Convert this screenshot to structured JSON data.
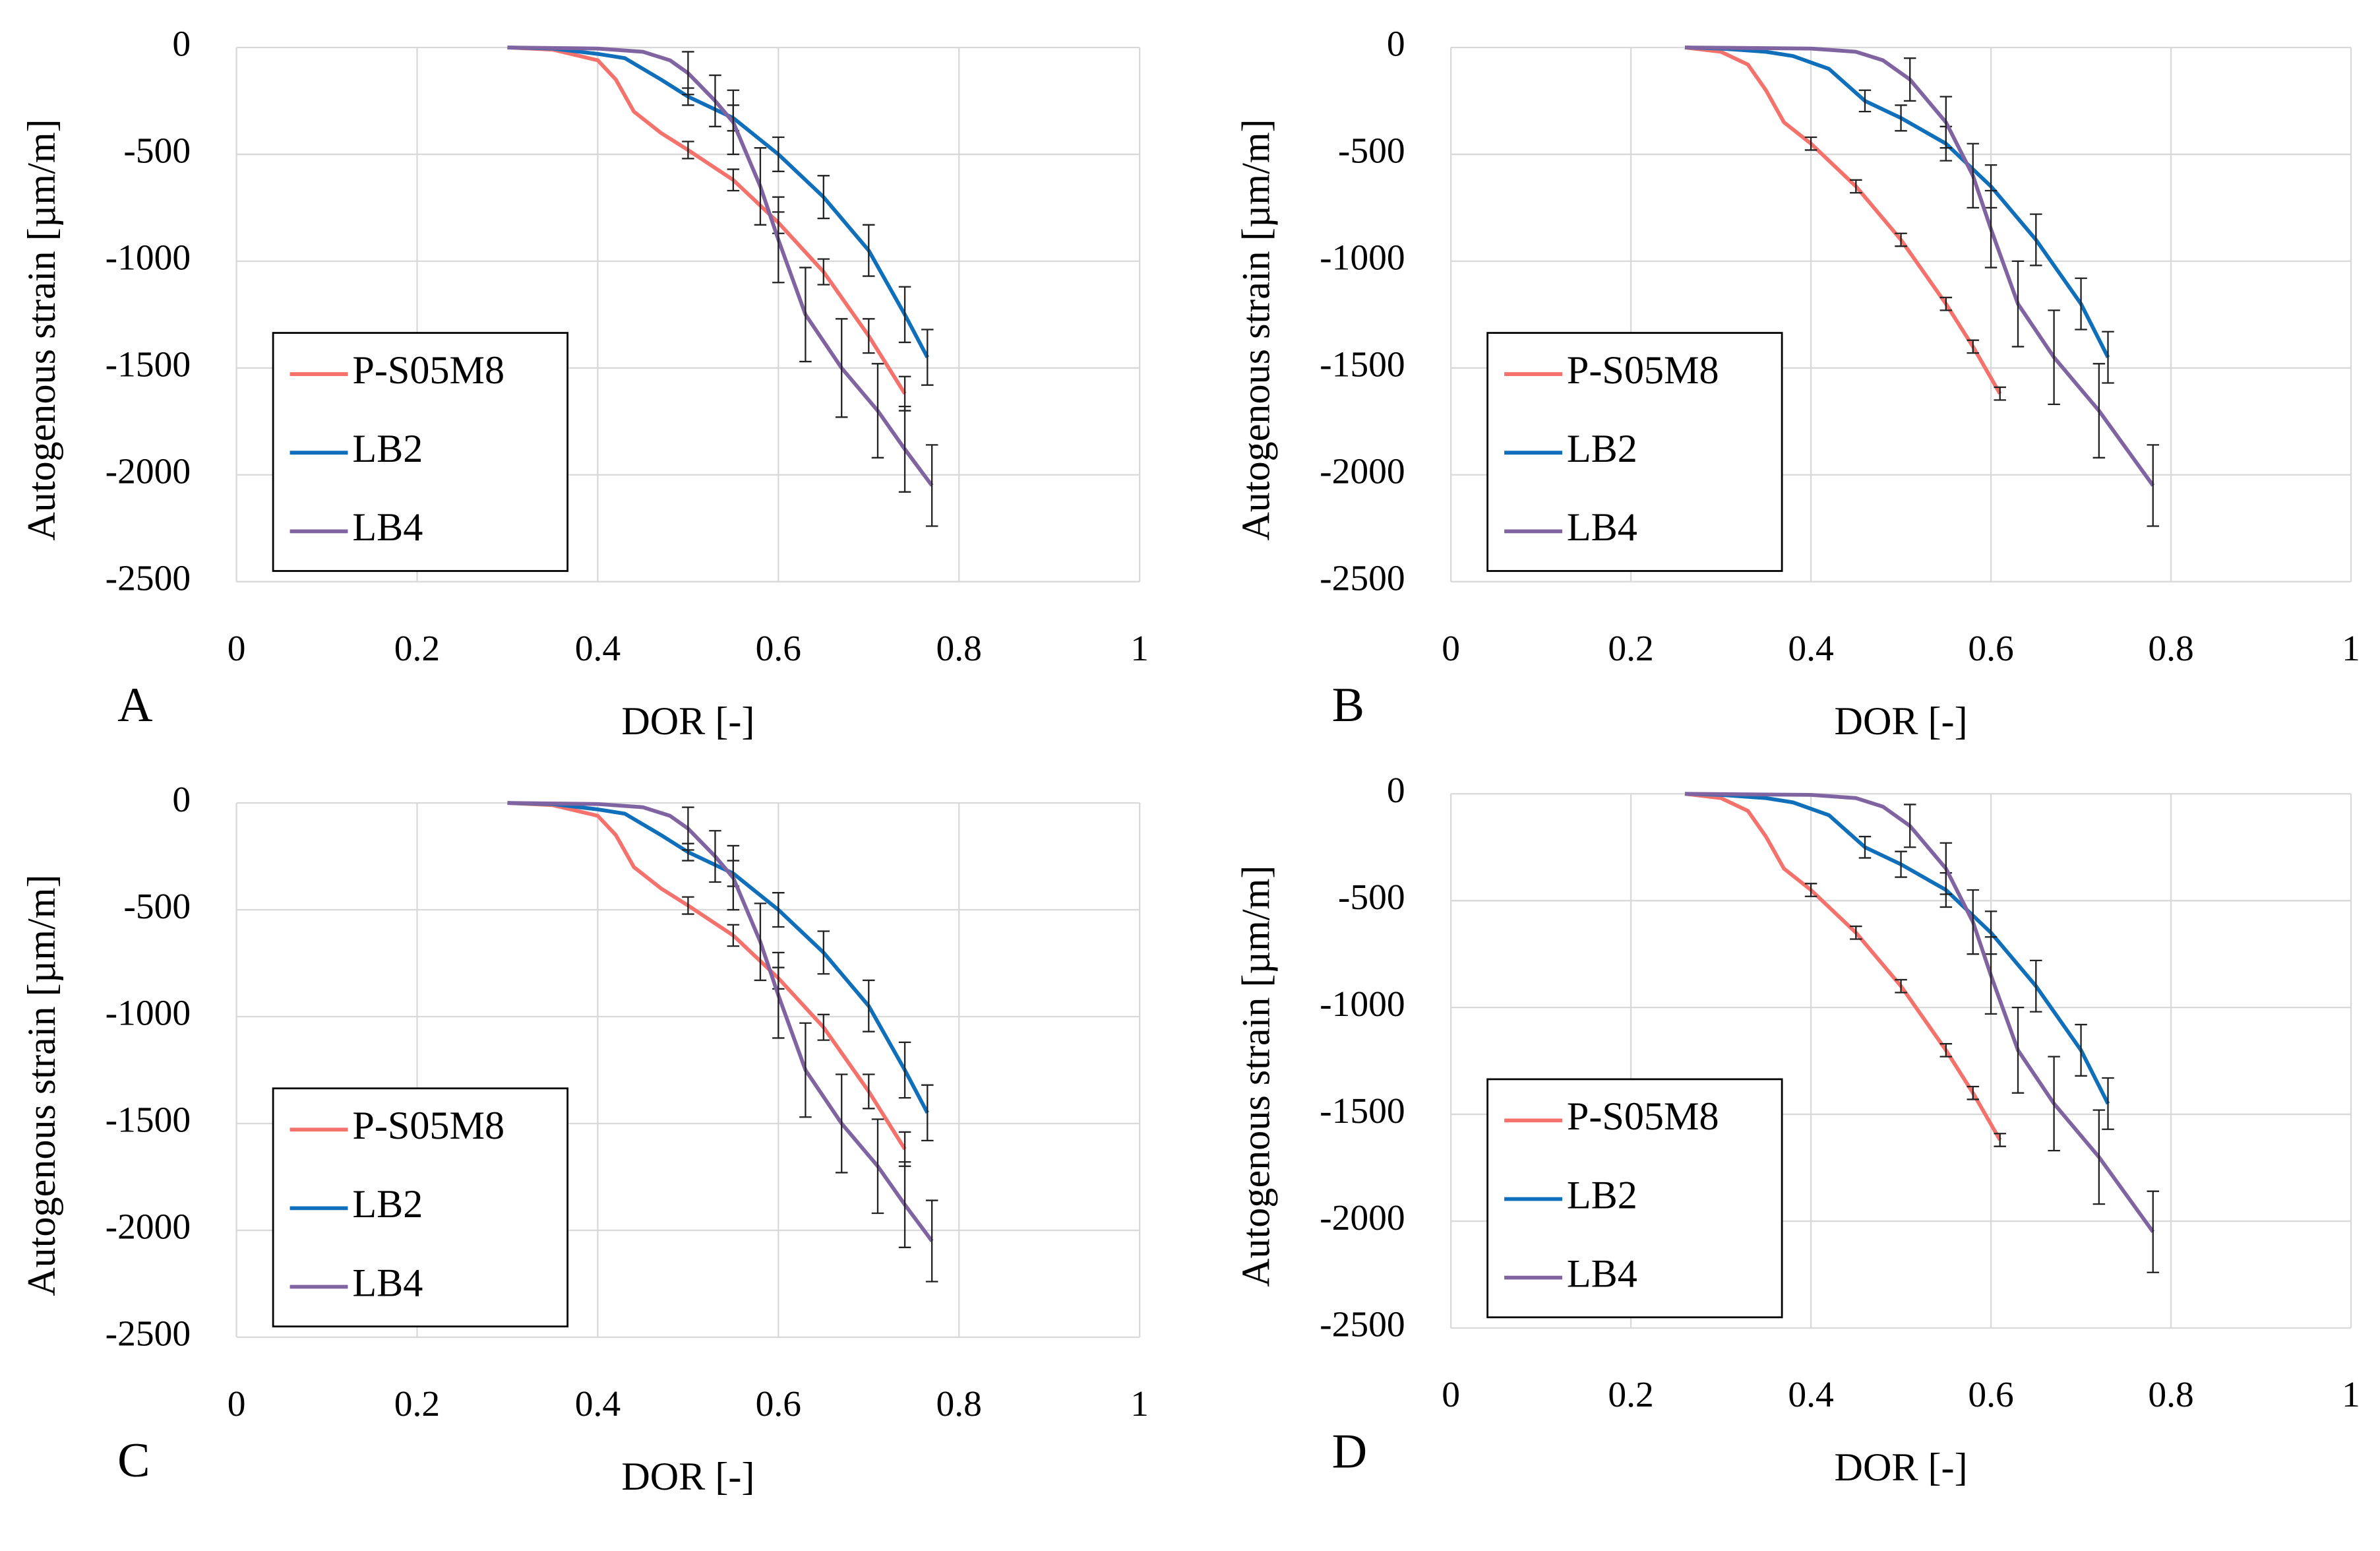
{
  "chart_data": [
    {
      "type": "line",
      "panel": "A",
      "xlabel": "DOR [-]",
      "ylabel": "Autogenous strain [µm/m]",
      "xlim": [
        0,
        1
      ],
      "ylim": [
        -2500,
        0
      ],
      "xticks": [
        0,
        0.2,
        0.4,
        0.6,
        0.8,
        1
      ],
      "yticks": [
        0,
        -500,
        -1000,
        -1500,
        -2000,
        -2500
      ],
      "grid": true,
      "legend_position": "lower left",
      "series": [
        {
          "name": "P-S05M8",
          "color": "#f4716c",
          "x": [
            0.3,
            0.35,
            0.38,
            0.4,
            0.42,
            0.44,
            0.47,
            0.5,
            0.55,
            0.6,
            0.65,
            0.7,
            0.74
          ],
          "values": [
            0,
            -10,
            -40,
            -60,
            -150,
            -300,
            -400,
            -480,
            -620,
            -820,
            -1050,
            -1350,
            -1620
          ],
          "errors": [
            null,
            null,
            null,
            null,
            null,
            null,
            null,
            40,
            50,
            50,
            60,
            80,
            80
          ]
        },
        {
          "name": "LB2",
          "color": "#0f6fba",
          "x": [
            0.3,
            0.35,
            0.4,
            0.43,
            0.47,
            0.5,
            0.55,
            0.6,
            0.65,
            0.7,
            0.74,
            0.765
          ],
          "values": [
            0,
            -5,
            -30,
            -50,
            -150,
            -230,
            -330,
            -500,
            -700,
            -950,
            -1250,
            -1450
          ],
          "errors": [
            null,
            null,
            null,
            null,
            null,
            40,
            60,
            80,
            100,
            120,
            130,
            130
          ]
        },
        {
          "name": "LB4",
          "color": "#8064a2",
          "x": [
            0.3,
            0.4,
            0.45,
            0.48,
            0.5,
            0.53,
            0.55,
            0.58,
            0.6,
            0.63,
            0.67,
            0.71,
            0.74,
            0.77
          ],
          "values": [
            0,
            -5,
            -20,
            -60,
            -120,
            -250,
            -350,
            -650,
            -900,
            -1250,
            -1500,
            -1700,
            -1880,
            -2050
          ],
          "errors": [
            null,
            null,
            null,
            null,
            100,
            120,
            150,
            180,
            200,
            220,
            230,
            220,
            200,
            190
          ]
        }
      ]
    },
    {
      "type": "line",
      "panel": "B",
      "xlabel": "DOR [-]",
      "ylabel": "Autogenous strain [µm/m]",
      "xlim": [
        0,
        1
      ],
      "ylim": [
        -2500,
        0
      ],
      "xticks": [
        0,
        0.2,
        0.4,
        0.6,
        0.8,
        1
      ],
      "yticks": [
        0,
        -500,
        -1000,
        -1500,
        -2000,
        -2500
      ],
      "grid": true,
      "legend_position": "lower left",
      "series": [
        {
          "name": "P-S05M8",
          "color": "#f4716c",
          "x": [
            0.26,
            0.3,
            0.33,
            0.35,
            0.37,
            0.4,
            0.45,
            0.5,
            0.55,
            0.58,
            0.61
          ],
          "values": [
            0,
            -20,
            -80,
            -200,
            -350,
            -450,
            -650,
            -900,
            -1200,
            -1400,
            -1620
          ],
          "errors": [
            null,
            null,
            null,
            null,
            null,
            30,
            30,
            30,
            30,
            30,
            30
          ]
        },
        {
          "name": "LB2",
          "color": "#0f6fba",
          "x": [
            0.26,
            0.3,
            0.35,
            0.38,
            0.42,
            0.46,
            0.5,
            0.55,
            0.6,
            0.65,
            0.7,
            0.73
          ],
          "values": [
            0,
            -5,
            -20,
            -40,
            -100,
            -250,
            -330,
            -450,
            -650,
            -900,
            -1200,
            -1450
          ],
          "errors": [
            null,
            null,
            null,
            null,
            null,
            50,
            60,
            80,
            100,
            120,
            120,
            120
          ]
        },
        {
          "name": "LB4",
          "color": "#8064a2",
          "x": [
            0.26,
            0.4,
            0.45,
            0.48,
            0.51,
            0.55,
            0.58,
            0.6,
            0.63,
            0.67,
            0.72,
            0.78
          ],
          "values": [
            0,
            -5,
            -20,
            -60,
            -150,
            -350,
            -600,
            -850,
            -1200,
            -1450,
            -1700,
            -2050
          ],
          "errors": [
            null,
            null,
            null,
            null,
            100,
            120,
            150,
            180,
            200,
            220,
            220,
            190
          ]
        }
      ]
    },
    {
      "type": "line",
      "panel": "C",
      "xlabel": "DOR [-]",
      "ylabel": "Autogenous strain [µm/m]",
      "xlim": [
        0,
        1
      ],
      "ylim": [
        -2500,
        0
      ],
      "xticks": [
        0,
        0.2,
        0.4,
        0.6,
        0.8,
        1
      ],
      "yticks": [
        0,
        -500,
        -1000,
        -1500,
        -2000,
        -2500
      ],
      "grid": true,
      "legend_position": "lower left",
      "series": [
        {
          "name": "P-S05M8",
          "color": "#f4716c",
          "x": [
            0.3,
            0.35,
            0.38,
            0.4,
            0.42,
            0.44,
            0.47,
            0.5,
            0.55,
            0.6,
            0.65,
            0.7,
            0.74
          ],
          "values": [
            0,
            -10,
            -40,
            -60,
            -150,
            -300,
            -400,
            -480,
            -620,
            -820,
            -1050,
            -1350,
            -1620
          ],
          "errors": [
            null,
            null,
            null,
            null,
            null,
            null,
            null,
            40,
            50,
            50,
            60,
            80,
            80
          ]
        },
        {
          "name": "LB2",
          "color": "#0f6fba",
          "x": [
            0.3,
            0.35,
            0.4,
            0.43,
            0.47,
            0.5,
            0.55,
            0.6,
            0.65,
            0.7,
            0.74,
            0.765
          ],
          "values": [
            0,
            -5,
            -30,
            -50,
            -150,
            -230,
            -330,
            -500,
            -700,
            -950,
            -1250,
            -1450
          ],
          "errors": [
            null,
            null,
            null,
            null,
            null,
            40,
            60,
            80,
            100,
            120,
            130,
            130
          ]
        },
        {
          "name": "LB4",
          "color": "#8064a2",
          "x": [
            0.3,
            0.4,
            0.45,
            0.48,
            0.5,
            0.53,
            0.55,
            0.58,
            0.6,
            0.63,
            0.67,
            0.71,
            0.74,
            0.77
          ],
          "values": [
            0,
            -5,
            -20,
            -60,
            -120,
            -250,
            -350,
            -650,
            -900,
            -1250,
            -1500,
            -1700,
            -1880,
            -2050
          ],
          "errors": [
            null,
            null,
            null,
            null,
            100,
            120,
            150,
            180,
            200,
            220,
            230,
            220,
            200,
            190
          ]
        }
      ]
    },
    {
      "type": "line",
      "panel": "D",
      "xlabel": "DOR [-]",
      "ylabel": "Autogenous strain [µm/m]",
      "xlim": [
        0,
        1
      ],
      "ylim": [
        -2500,
        0
      ],
      "xticks": [
        0,
        0.2,
        0.4,
        0.6,
        0.8,
        1
      ],
      "yticks": [
        0,
        -500,
        -1000,
        -1500,
        -2000,
        -2500
      ],
      "grid": true,
      "legend_position": "lower left",
      "series": [
        {
          "name": "P-S05M8",
          "color": "#f4716c",
          "x": [
            0.26,
            0.3,
            0.33,
            0.35,
            0.37,
            0.4,
            0.45,
            0.5,
            0.55,
            0.58,
            0.61
          ],
          "values": [
            0,
            -20,
            -80,
            -200,
            -350,
            -450,
            -650,
            -900,
            -1200,
            -1400,
            -1620
          ],
          "errors": [
            null,
            null,
            null,
            null,
            null,
            30,
            30,
            30,
            30,
            30,
            30
          ]
        },
        {
          "name": "LB2",
          "color": "#0f6fba",
          "x": [
            0.26,
            0.3,
            0.35,
            0.38,
            0.42,
            0.46,
            0.5,
            0.55,
            0.6,
            0.65,
            0.7,
            0.73
          ],
          "values": [
            0,
            -5,
            -20,
            -40,
            -100,
            -250,
            -330,
            -450,
            -650,
            -900,
            -1200,
            -1450
          ],
          "errors": [
            null,
            null,
            null,
            null,
            null,
            50,
            60,
            80,
            100,
            120,
            120,
            120
          ]
        },
        {
          "name": "LB4",
          "color": "#8064a2",
          "x": [
            0.26,
            0.4,
            0.45,
            0.48,
            0.51,
            0.55,
            0.58,
            0.6,
            0.63,
            0.67,
            0.72,
            0.78
          ],
          "values": [
            0,
            -5,
            -20,
            -60,
            -150,
            -350,
            -600,
            -850,
            -1200,
            -1450,
            -1700,
            -2050
          ],
          "errors": [
            null,
            null,
            null,
            null,
            100,
            120,
            150,
            180,
            200,
            220,
            220,
            190
          ]
        }
      ]
    }
  ]
}
